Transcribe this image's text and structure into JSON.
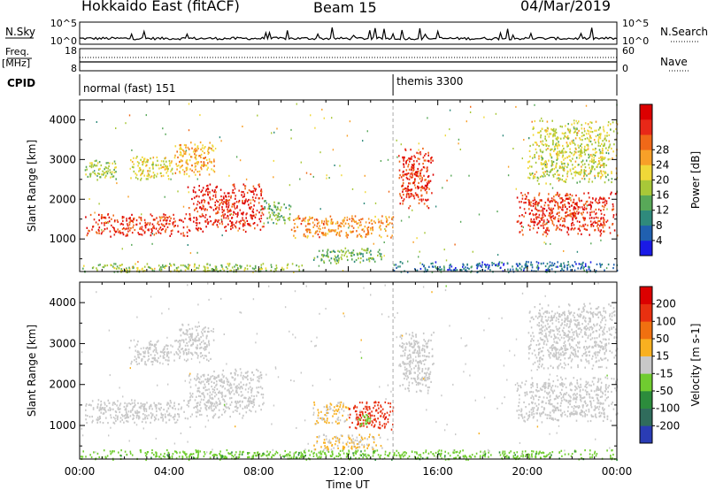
{
  "header": {
    "radar": "Hokkaido East (fitACF)",
    "beam": "Beam 15",
    "date": "04/Mar/2019"
  },
  "strip_labels": {
    "nsky": "N.Sky",
    "nsearch": "N.Search",
    "freq": "Freq.",
    "freq_unit": "[MHz]",
    "nave": "Nave",
    "cpid": "CPID",
    "nsky_ticks": [
      "10^5",
      "10^0"
    ],
    "nsearch_ticks": [
      "10^5",
      "10^0"
    ],
    "freq_ticks": [
      "18",
      "8"
    ],
    "nave_ticks": [
      "60",
      "0"
    ]
  },
  "cpid_segments": [
    {
      "label": "normal (fast) 151",
      "start_hour": 0
    },
    {
      "label": "themis 3300",
      "start_hour": 14
    }
  ],
  "time_axis": {
    "label": "Time UT",
    "ticks": [
      "00:00",
      "04:00",
      "08:00",
      "12:00",
      "16:00",
      "20:00",
      "00:00"
    ]
  },
  "chart_data": [
    {
      "type": "heatmap",
      "name": "power",
      "xlabel": "Time UT",
      "ylabel": "Slant Range [km]",
      "xlim": [
        0,
        24
      ],
      "ylim": [
        180,
        4500
      ],
      "yticks": [
        1000,
        2000,
        3000,
        4000
      ],
      "colorbar": {
        "label": "Power [dB]",
        "ticks": [
          "4",
          "8",
          "12",
          "16",
          "20",
          "24",
          "28"
        ],
        "range": [
          0,
          32
        ],
        "colors": [
          "#1a1ae6",
          "#2060b0",
          "#2f8a7c",
          "#58a858",
          "#a8c838",
          "#f0d838",
          "#f8a028",
          "#f06818",
          "#e82818",
          "#dc0000"
        ]
      },
      "echo_regions": [
        {
          "t0": 0.2,
          "t1": 4.8,
          "r0": 1080,
          "r1": 1650,
          "value": 27
        },
        {
          "t0": 4.8,
          "t1": 8.2,
          "r0": 1200,
          "r1": 2400,
          "value": 28
        },
        {
          "t0": 4.2,
          "t1": 6.0,
          "r0": 2600,
          "r1": 3500,
          "value": 20
        },
        {
          "t0": 0.2,
          "t1": 1.6,
          "r0": 2500,
          "r1": 3000,
          "value": 14
        },
        {
          "t0": 2.2,
          "t1": 4.2,
          "r0": 2500,
          "r1": 3100,
          "value": 17
        },
        {
          "t0": 8.2,
          "t1": 9.4,
          "r0": 1400,
          "r1": 2000,
          "value": 12
        },
        {
          "t0": 9.4,
          "t1": 14.0,
          "r0": 1050,
          "r1": 1600,
          "value": 22
        },
        {
          "t0": 10.4,
          "t1": 13.5,
          "r0": 400,
          "r1": 800,
          "value": 12
        },
        {
          "t0": 14.2,
          "t1": 15.8,
          "r0": 1800,
          "r1": 3300,
          "value": 27
        },
        {
          "t0": 14.0,
          "t1": 24.0,
          "r0": 180,
          "r1": 450,
          "value": 6
        },
        {
          "t0": 0.0,
          "t1": 10.0,
          "r0": 180,
          "r1": 400,
          "value": 14
        },
        {
          "t0": 19.5,
          "t1": 24.0,
          "r0": 1100,
          "r1": 2200,
          "value": 27
        },
        {
          "t0": 20.0,
          "t1": 24.0,
          "r0": 2400,
          "r1": 4000,
          "value": 16
        }
      ]
    },
    {
      "type": "heatmap",
      "name": "velocity",
      "xlabel": "Time UT",
      "ylabel": "Slant Range [km]",
      "xlim": [
        0,
        24
      ],
      "ylim": [
        180,
        4500
      ],
      "yticks": [
        1000,
        2000,
        3000,
        4000
      ],
      "colorbar": {
        "label": "Velocity [m s-1]",
        "ticks": [
          "200",
          "100",
          "50",
          "15",
          "-15",
          "-50",
          "-100",
          "-200"
        ],
        "range": [
          -250,
          250
        ],
        "colors": [
          "#2a3cb4",
          "#306c5c",
          "#2c8c3c",
          "#70cc30",
          "#c8c8c8",
          "#f8b020",
          "#f07010",
          "#e83010",
          "#dc0000"
        ]
      },
      "echo_regions": [
        {
          "t0": 0.2,
          "t1": 4.8,
          "r0": 1080,
          "r1": 1650,
          "value": 0
        },
        {
          "t0": 4.8,
          "t1": 8.2,
          "r0": 1200,
          "r1": 2400,
          "value": 0
        },
        {
          "t0": 4.2,
          "t1": 6.0,
          "r0": 2600,
          "r1": 3500,
          "value": 0
        },
        {
          "t0": 2.2,
          "t1": 4.2,
          "r0": 2500,
          "r1": 3100,
          "value": 0
        },
        {
          "t0": 10.4,
          "t1": 12.0,
          "r0": 1050,
          "r1": 1600,
          "value": 30
        },
        {
          "t0": 12.0,
          "t1": 14.0,
          "r0": 900,
          "r1": 1600,
          "value": 180
        },
        {
          "t0": 12.4,
          "t1": 13.0,
          "r0": 1000,
          "r1": 1350,
          "value": -60
        },
        {
          "t0": 10.4,
          "t1": 13.5,
          "r0": 400,
          "r1": 800,
          "value": 30
        },
        {
          "t0": 14.2,
          "t1": 15.8,
          "r0": 1800,
          "r1": 3300,
          "value": 0
        },
        {
          "t0": 0.0,
          "t1": 24.0,
          "r0": 180,
          "r1": 420,
          "value": -70
        },
        {
          "t0": 19.5,
          "t1": 24.0,
          "r0": 1100,
          "r1": 2200,
          "value": 0
        },
        {
          "t0": 20.0,
          "t1": 24.0,
          "r0": 2400,
          "r1": 4000,
          "value": 0
        }
      ]
    }
  ]
}
